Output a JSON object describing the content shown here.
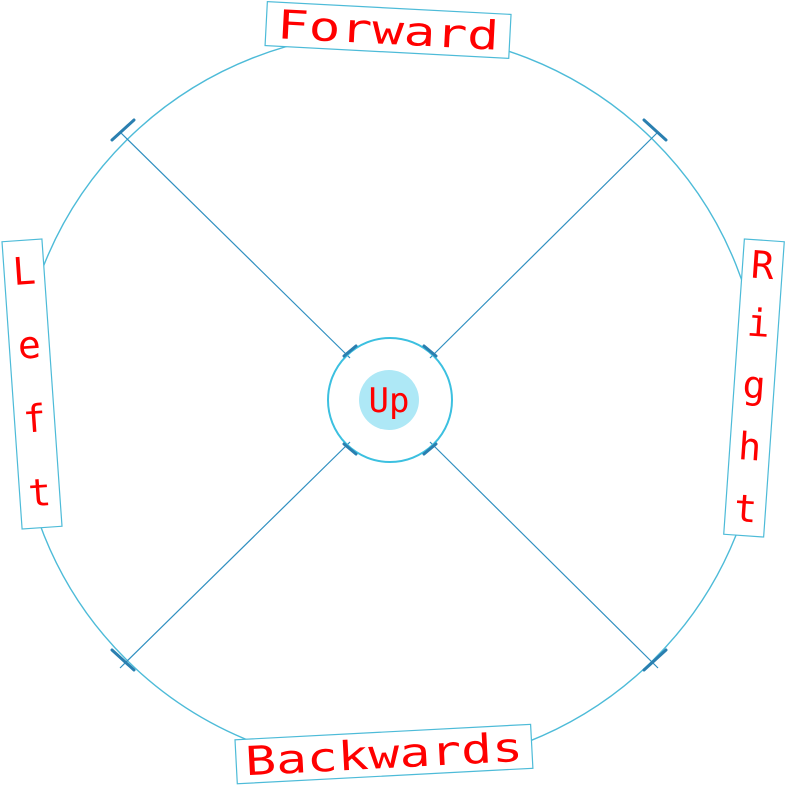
{
  "controls": {
    "forward": {
      "label": "Forward"
    },
    "backwards": {
      "label": "Backwards"
    },
    "left": {
      "label": "Left",
      "letters": [
        "L",
        "e",
        "f",
        "t"
      ]
    },
    "right": {
      "label": "Right",
      "letters": [
        "R",
        "i",
        "g",
        "h",
        "t"
      ]
    },
    "up": {
      "label": "Up"
    }
  },
  "colors": {
    "label_text": "#ff0000",
    "ring": "#4dbbd8",
    "spokes": "#2f8fc0",
    "center_button_fill": "#aee8f6"
  }
}
